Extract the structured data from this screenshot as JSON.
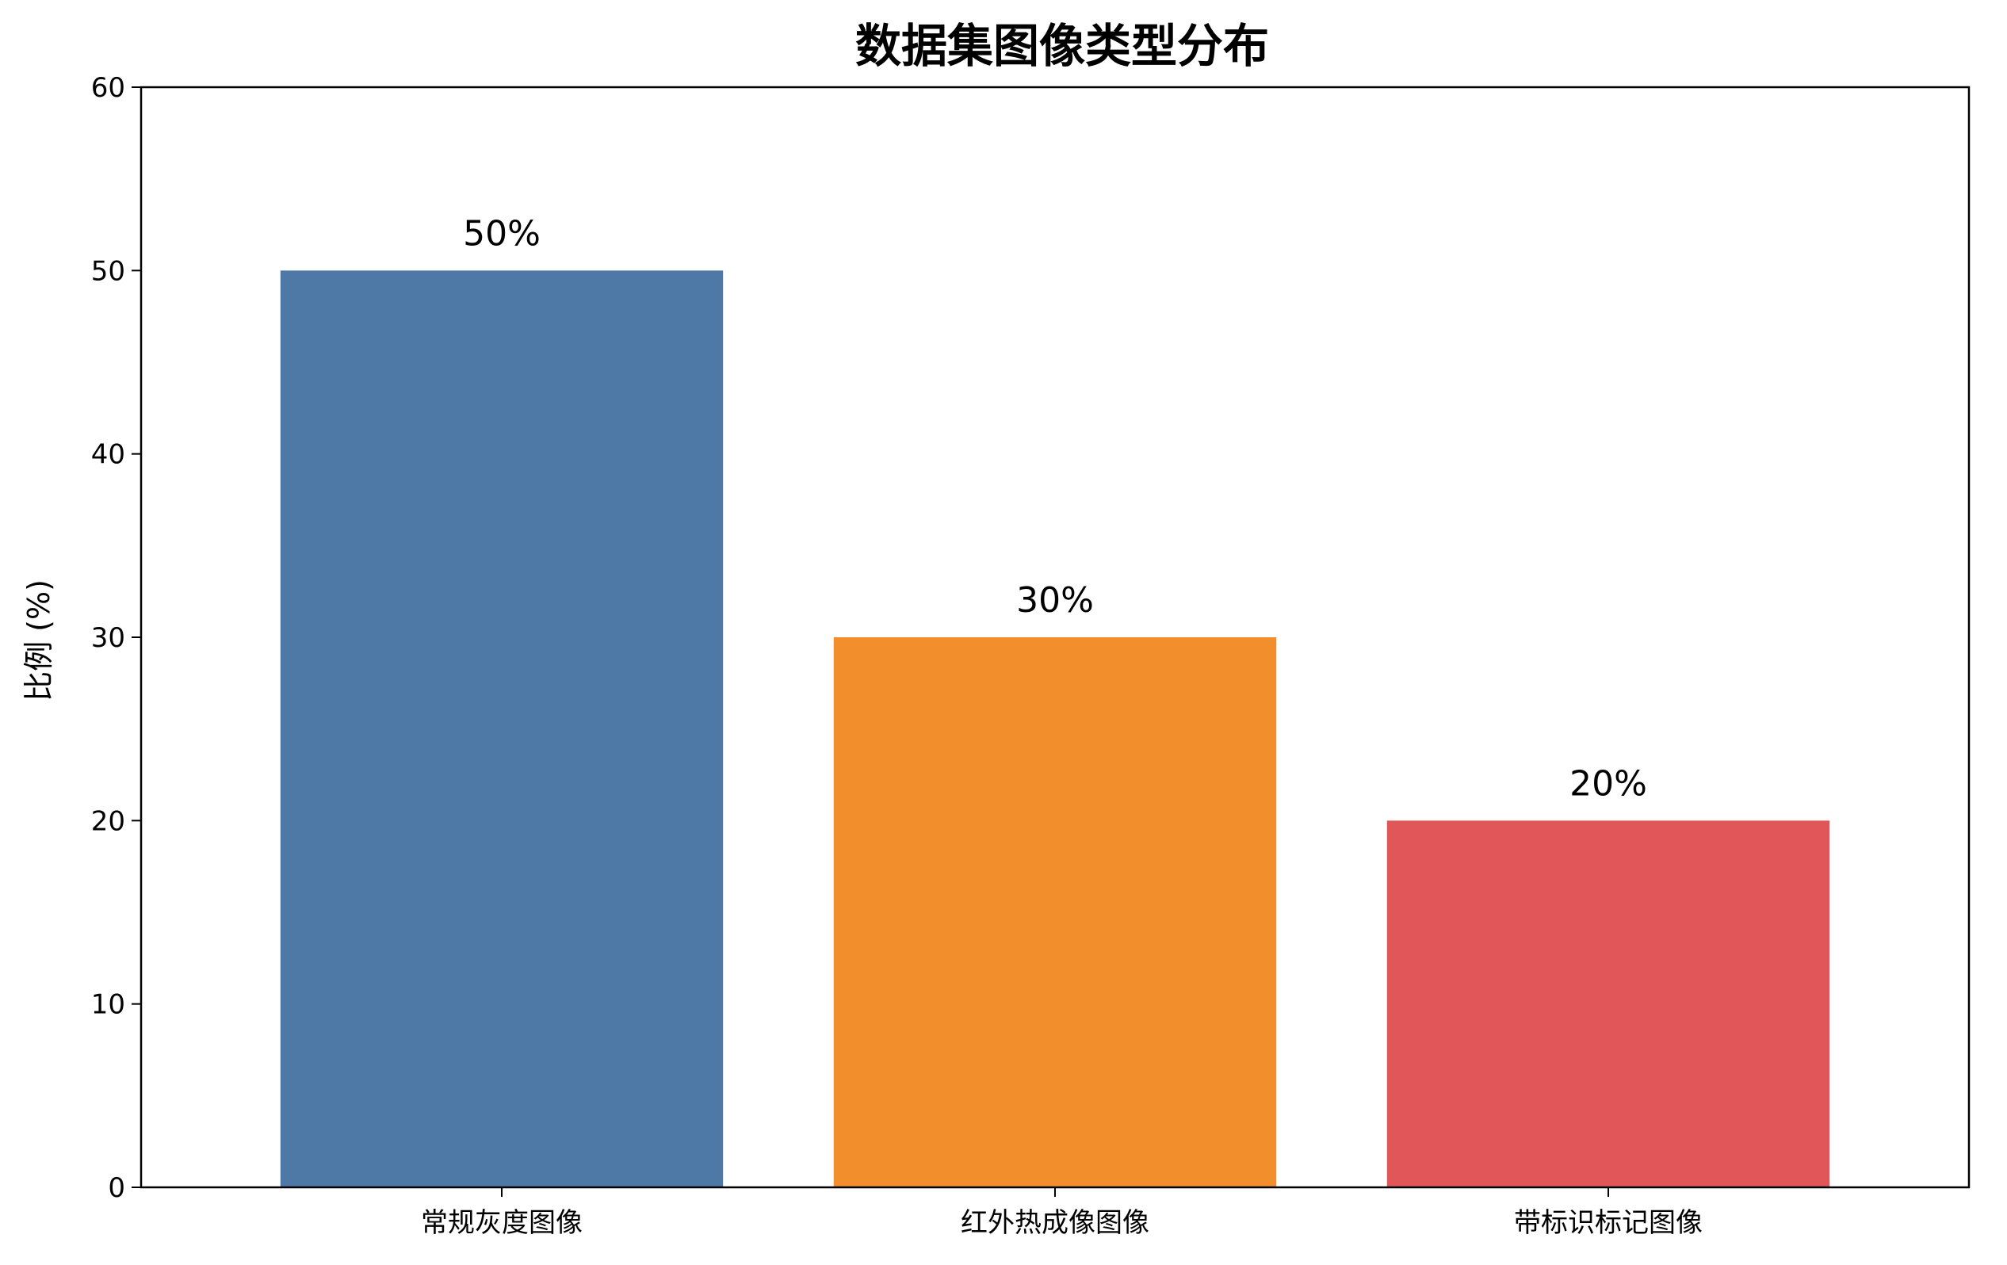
{
  "chart_data": {
    "type": "bar",
    "title": "数据集图像类型分布",
    "xlabel": "",
    "ylabel": "比例 (%)",
    "categories": [
      "常规灰度图像",
      "红外热成像图像",
      "带标识标记图像"
    ],
    "values": [
      50,
      30,
      20
    ],
    "data_labels": [
      "50%",
      "30%",
      "20%"
    ],
    "colors": [
      "#4e79a7",
      "#f28e2b",
      "#e15759"
    ],
    "ylim": [
      0,
      60
    ],
    "yticks": [
      0,
      10,
      20,
      30,
      40,
      50,
      60
    ],
    "grid": false,
    "legend": "none"
  }
}
